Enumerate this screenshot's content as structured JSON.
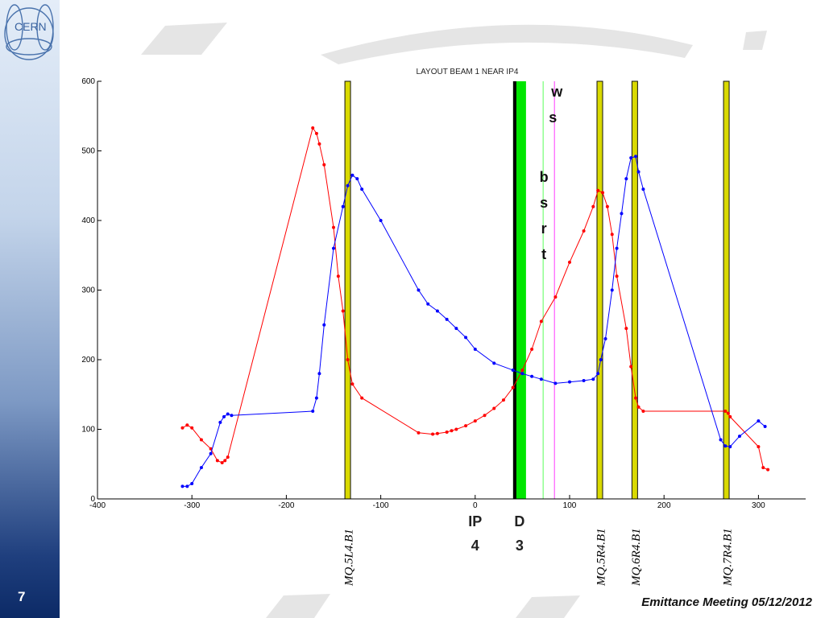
{
  "slide": {
    "number": "7",
    "footer": "Emittance Meeting 05/12/2012",
    "logo_text": "CERN"
  },
  "colors": {
    "beta_x": "#ff0000",
    "beta_y": "#0000ff",
    "quad": "#d9d900",
    "dipole": "#00e600",
    "bsrt": "#80ff80",
    "ws": "#ff66ff"
  },
  "chart_data": {
    "type": "line",
    "title": "LAYOUT BEAM 1 NEAR IP4",
    "xlim": [
      -400,
      350
    ],
    "ylim": [
      0,
      600
    ],
    "xticks": [
      -400,
      -300,
      -200,
      -100,
      0,
      100,
      200,
      300
    ],
    "yticks": [
      0,
      100,
      200,
      300,
      400,
      500,
      600
    ],
    "grid": false,
    "series": [
      {
        "color": "#ff0000",
        "x": [
          -310,
          -305,
          -300,
          -290,
          -280,
          -273,
          -268,
          -265,
          -262,
          -172,
          -168,
          -165,
          -160,
          -150,
          -145,
          -140,
          -135,
          -130,
          -120,
          -60,
          -45,
          -40,
          -30,
          -25,
          -20,
          -10,
          0,
          10,
          20,
          30,
          40,
          50,
          60,
          70,
          85,
          100,
          115,
          125,
          130,
          135,
          140,
          145,
          150,
          160,
          165,
          170,
          173,
          178,
          265,
          268,
          270,
          300,
          305,
          310
        ],
        "y": [
          102,
          106,
          102,
          85,
          72,
          55,
          52,
          55,
          60,
          533,
          525,
          510,
          480,
          390,
          320,
          270,
          200,
          165,
          145,
          95,
          93,
          94,
          96,
          98,
          100,
          105,
          112,
          120,
          130,
          142,
          160,
          185,
          215,
          255,
          290,
          340,
          385,
          420,
          443,
          440,
          420,
          380,
          320,
          245,
          190,
          145,
          132,
          126,
          126,
          123,
          118,
          75,
          45,
          42
        ]
      },
      {
        "color": "#0000ff",
        "x": [
          -310,
          -305,
          -300,
          -290,
          -280,
          -270,
          -266,
          -262,
          -258,
          -172,
          -168,
          -165,
          -160,
          -150,
          -140,
          -135,
          -130,
          -125,
          -120,
          -100,
          -60,
          -50,
          -40,
          -30,
          -20,
          -10,
          0,
          20,
          40,
          50,
          60,
          70,
          85,
          100,
          115,
          125,
          130,
          133,
          138,
          145,
          150,
          155,
          160,
          165,
          170,
          173,
          178,
          260,
          265,
          270,
          280,
          300,
          307
        ],
        "y": [
          18,
          18,
          22,
          45,
          65,
          110,
          118,
          122,
          120,
          126,
          145,
          180,
          250,
          360,
          420,
          450,
          465,
          460,
          445,
          400,
          300,
          280,
          270,
          258,
          245,
          232,
          215,
          195,
          185,
          180,
          176,
          172,
          166,
          168,
          170,
          172,
          180,
          200,
          230,
          300,
          360,
          410,
          460,
          490,
          492,
          470,
          445,
          85,
          76,
          75,
          90,
          112,
          104
        ]
      }
    ],
    "elements": [
      {
        "type": "quad",
        "x": -135,
        "label": "MQ.5L4.B1"
      },
      {
        "type": "dipole",
        "x": 47,
        "label": "D 3"
      },
      {
        "type": "bsrt",
        "x": 72,
        "label": "bsrt"
      },
      {
        "type": "ws",
        "x": 84,
        "label": "ws"
      },
      {
        "type": "quad",
        "x": 132,
        "label": "MQ.5R4.B1"
      },
      {
        "type": "quad",
        "x": 169,
        "label": "MQ.6R4.B1"
      },
      {
        "type": "quad",
        "x": 266,
        "label": "MQ.7R4.B1"
      }
    ],
    "markers": [
      {
        "x": 0,
        "label": "IP 4"
      }
    ]
  }
}
